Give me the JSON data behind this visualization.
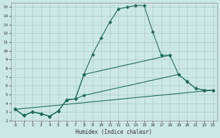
{
  "xlabel": "Humidex (Indice chaleur)",
  "bg_color": "#cce8e4",
  "grid_color": "#aacccc",
  "line_color": "#1a6b5a",
  "xlim": [
    -0.5,
    23.5
  ],
  "ylim": [
    2,
    15.5
  ],
  "xticks": [
    0,
    1,
    2,
    3,
    4,
    5,
    6,
    7,
    8,
    9,
    10,
    11,
    12,
    13,
    14,
    15,
    16,
    17,
    18,
    19,
    20,
    21,
    22,
    23
  ],
  "yticks": [
    2,
    3,
    4,
    5,
    6,
    7,
    8,
    9,
    10,
    11,
    12,
    13,
    14,
    15
  ],
  "lines": [
    {
      "x": [
        0,
        1,
        2,
        3,
        4,
        5,
        6,
        7,
        8,
        9,
        10,
        11,
        12,
        13,
        14,
        15,
        16,
        17,
        18
      ],
      "y": [
        3.3,
        2.6,
        3.0,
        2.8,
        2.5,
        3.1,
        4.4,
        4.5,
        7.3,
        9.6,
        11.5,
        13.3,
        14.8,
        15.0,
        15.2,
        15.2,
        12.2,
        9.5,
        9.5
      ],
      "has_markers": true
    },
    {
      "x": [
        0,
        1,
        2,
        3,
        4,
        5,
        6,
        7,
        8,
        18,
        19,
        20,
        21,
        22,
        23
      ],
      "y": [
        3.3,
        2.6,
        3.0,
        2.8,
        2.5,
        3.1,
        4.4,
        4.5,
        7.3,
        9.5,
        7.3,
        6.5,
        5.7,
        5.5,
        5.5
      ],
      "has_markers": true
    },
    {
      "x": [
        0,
        1,
        2,
        3,
        4,
        5,
        6,
        7,
        8,
        19,
        20,
        21,
        22,
        23
      ],
      "y": [
        3.3,
        2.6,
        3.0,
        2.8,
        2.5,
        3.1,
        4.4,
        4.5,
        4.9,
        7.3,
        6.5,
        5.7,
        5.5,
        5.5
      ],
      "has_markers": true
    },
    {
      "x": [
        0,
        23
      ],
      "y": [
        3.3,
        5.5
      ],
      "has_markers": false
    }
  ]
}
